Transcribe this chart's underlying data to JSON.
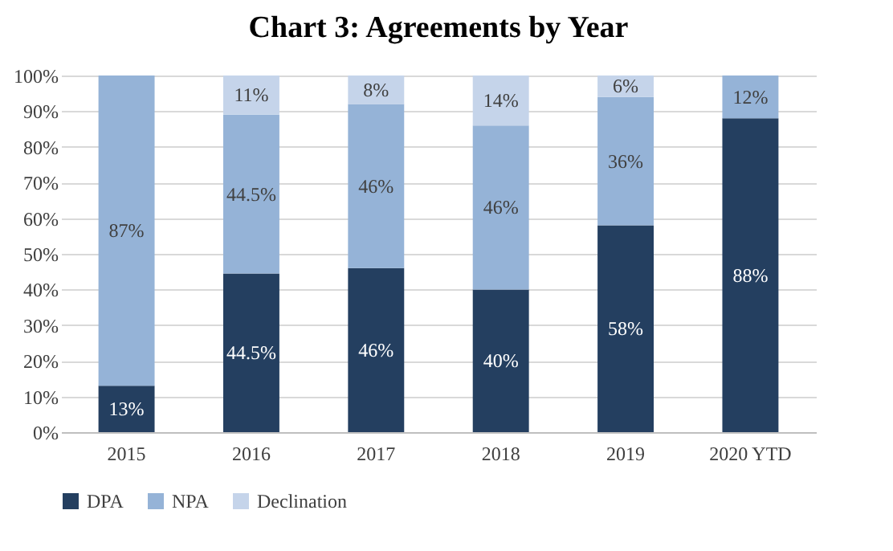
{
  "chart_data": {
    "type": "bar",
    "title": "Chart 3: Agreements by Year",
    "stacked": true,
    "categories": [
      "2015",
      "2016",
      "2017",
      "2018",
      "2019",
      "2020 YTD"
    ],
    "series": [
      {
        "name": "DPA",
        "color": "#243f60",
        "values": [
          13,
          44.5,
          46,
          40,
          58,
          88
        ],
        "value_labels": [
          "13%",
          "44.5%",
          "46%",
          "40%",
          "58%",
          "88%"
        ]
      },
      {
        "name": "NPA",
        "color": "#95b3d7",
        "values": [
          87,
          44.5,
          46,
          46,
          36,
          12
        ],
        "value_labels": [
          "87%",
          "44.5%",
          "46%",
          "46%",
          "36%",
          "12%"
        ]
      },
      {
        "name": "Declination",
        "color": "#c5d4ea",
        "values": [
          null,
          11,
          8,
          14,
          6,
          null
        ],
        "value_labels": [
          null,
          "11%",
          "8%",
          "14%",
          "6%",
          null
        ]
      }
    ],
    "ylim": [
      0,
      100
    ],
    "yticks": [
      {
        "value": 0,
        "label": "0%"
      },
      {
        "value": 10,
        "label": "10%"
      },
      {
        "value": 20,
        "label": "20%"
      },
      {
        "value": 30,
        "label": "30%"
      },
      {
        "value": 40,
        "label": "40%"
      },
      {
        "value": 50,
        "label": "50%"
      },
      {
        "value": 60,
        "label": "60%"
      },
      {
        "value": 70,
        "label": "70%"
      },
      {
        "value": 80,
        "label": "80%"
      },
      {
        "value": 90,
        "label": "90%"
      },
      {
        "value": 100,
        "label": "100%"
      }
    ],
    "grid": "y",
    "legend": "bottom"
  }
}
